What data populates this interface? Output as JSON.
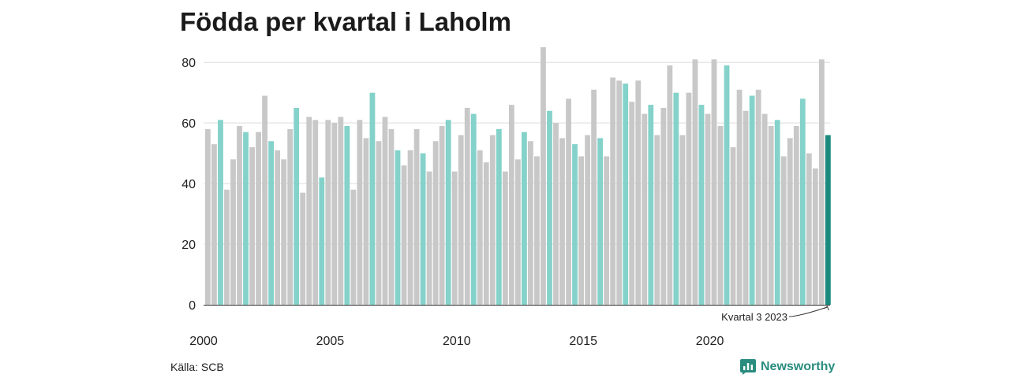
{
  "title": "Födda per kvartal i Laholm",
  "source": "Källa: SCB",
  "brand": {
    "name": "Newsworthy",
    "icon": "newsworthy-chart-icon"
  },
  "colors": {
    "regular": "#c8c8c8",
    "highlight": "#84d2ca",
    "latest": "#1a8a7e",
    "grid": "#dddddd"
  },
  "annotation": "Kvartal 3 2023",
  "chart_data": {
    "type": "bar",
    "title": "Födda per kvartal i Laholm",
    "xlabel": "",
    "ylabel": "",
    "ylim": [
      0,
      85
    ],
    "yticks": [
      0,
      20,
      40,
      60,
      80
    ],
    "xticks": [
      "2000",
      "2005",
      "2010",
      "2015",
      "2020"
    ],
    "grid": true,
    "highlight_quarter": 3,
    "start_year": 2000,
    "values": [
      58,
      53,
      61,
      38,
      48,
      59,
      57,
      52,
      57,
      69,
      54,
      51,
      48,
      58,
      65,
      37,
      62,
      61,
      42,
      61,
      60,
      62,
      59,
      38,
      61,
      55,
      70,
      54,
      62,
      58,
      51,
      46,
      51,
      58,
      50,
      44,
      54,
      59,
      61,
      44,
      56,
      65,
      63,
      51,
      47,
      56,
      58,
      44,
      66,
      48,
      57,
      54,
      49,
      85,
      64,
      60,
      55,
      68,
      53,
      49,
      56,
      71,
      55,
      49,
      75,
      74,
      73,
      67,
      74,
      63,
      66,
      56,
      65,
      79,
      70,
      56,
      70,
      81,
      66,
      63,
      81,
      59,
      79,
      52,
      71,
      64,
      69,
      71,
      63,
      59,
      61,
      49,
      55,
      59,
      68,
      50,
      45,
      81,
      56
    ]
  }
}
